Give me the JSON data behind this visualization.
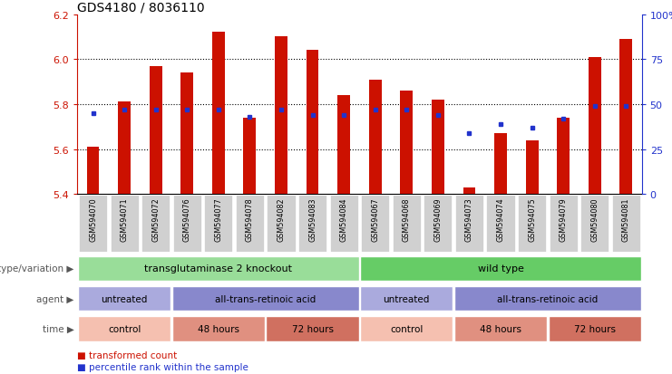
{
  "title": "GDS4180 / 8036110",
  "samples": [
    "GSM594070",
    "GSM594071",
    "GSM594072",
    "GSM594076",
    "GSM594077",
    "GSM594078",
    "GSM594082",
    "GSM594083",
    "GSM594084",
    "GSM594067",
    "GSM594068",
    "GSM594069",
    "GSM594073",
    "GSM594074",
    "GSM594075",
    "GSM594079",
    "GSM594080",
    "GSM594081"
  ],
  "bar_values": [
    5.61,
    5.81,
    5.97,
    5.94,
    6.12,
    5.74,
    6.1,
    6.04,
    5.84,
    5.91,
    5.86,
    5.82,
    5.43,
    5.67,
    5.64,
    5.74,
    6.01,
    6.09
  ],
  "percentile_values": [
    45,
    47,
    47,
    47,
    47,
    43,
    47,
    44,
    44,
    47,
    47,
    44,
    34,
    39,
    37,
    42,
    49,
    49
  ],
  "ymin": 5.4,
  "ymax": 6.2,
  "yticks": [
    5.4,
    5.6,
    5.8,
    6.0,
    6.2
  ],
  "right_yticks": [
    0,
    25,
    50,
    75,
    100
  ],
  "bar_color": "#cc1100",
  "percentile_color": "#2233cc",
  "genotype_groups": [
    {
      "label": "transglutaminase 2 knockout",
      "start": 0,
      "end": 9,
      "color": "#99dd99"
    },
    {
      "label": "wild type",
      "start": 9,
      "end": 18,
      "color": "#66cc66"
    }
  ],
  "agent_groups": [
    {
      "label": "untreated",
      "start": 0,
      "end": 3,
      "color": "#aaaadd"
    },
    {
      "label": "all-trans-retinoic acid",
      "start": 3,
      "end": 9,
      "color": "#8888cc"
    },
    {
      "label": "untreated",
      "start": 9,
      "end": 12,
      "color": "#aaaadd"
    },
    {
      "label": "all-trans-retinoic acid",
      "start": 12,
      "end": 18,
      "color": "#8888cc"
    }
  ],
  "time_groups": [
    {
      "label": "control",
      "start": 0,
      "end": 3,
      "color": "#f5c0b0"
    },
    {
      "label": "48 hours",
      "start": 3,
      "end": 6,
      "color": "#e09080"
    },
    {
      "label": "72 hours",
      "start": 6,
      "end": 9,
      "color": "#d07060"
    },
    {
      "label": "control",
      "start": 9,
      "end": 12,
      "color": "#f5c0b0"
    },
    {
      "label": "48 hours",
      "start": 12,
      "end": 15,
      "color": "#e09080"
    },
    {
      "label": "72 hours",
      "start": 15,
      "end": 18,
      "color": "#d07060"
    }
  ],
  "legend_items": [
    {
      "label": "transformed count",
      "color": "#cc1100"
    },
    {
      "label": "percentile rank within the sample",
      "color": "#2233cc"
    }
  ],
  "row_labels": [
    "genotype/variation",
    "agent",
    "time"
  ],
  "title_fontsize": 10,
  "tick_fontsize": 8,
  "bar_width": 0.4
}
